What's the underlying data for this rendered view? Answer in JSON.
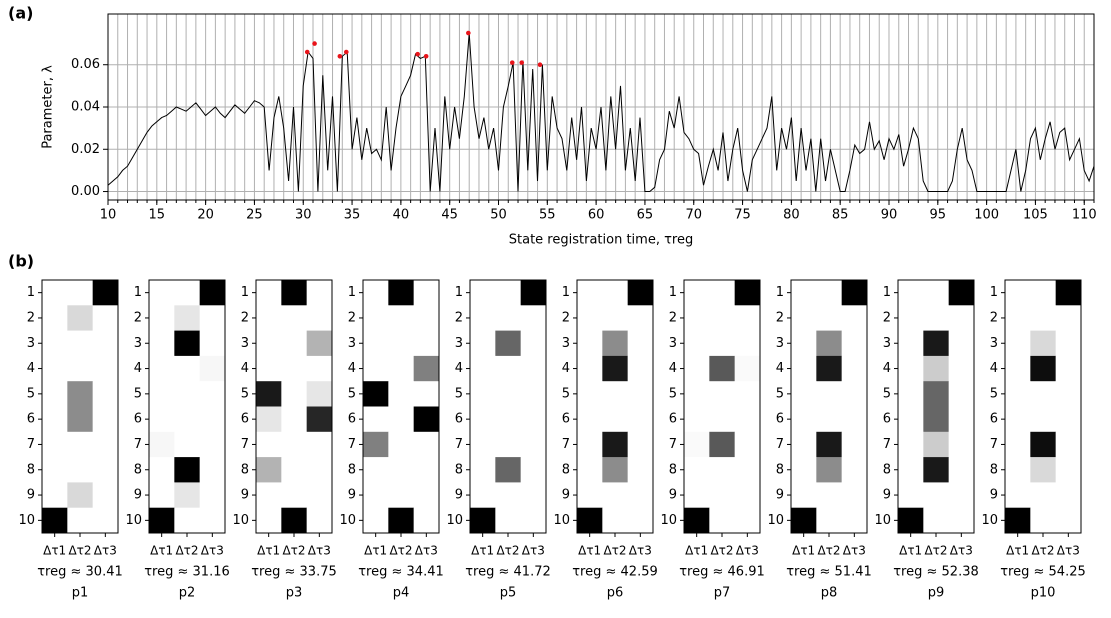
{
  "panel_labels": [
    "(a)",
    "(b)"
  ],
  "chart_data": [
    {
      "type": "line",
      "xlabel": "State registration time, τreg",
      "ylabel": "Parameter, λ",
      "color": "#000000",
      "xlim": [
        10,
        111
      ],
      "ylim": [
        -0.004,
        0.084
      ],
      "xticks": [
        10,
        15,
        20,
        25,
        30,
        35,
        40,
        45,
        50,
        55,
        60,
        65,
        70,
        75,
        80,
        85,
        90,
        95,
        100,
        105,
        110
      ],
      "xminorticks": [
        10,
        11,
        12,
        13,
        14,
        15,
        16,
        17,
        18,
        19,
        20,
        21,
        22,
        23,
        24,
        25,
        26,
        27,
        28,
        29,
        30,
        31,
        32,
        33,
        34,
        35,
        36,
        37,
        38,
        39,
        40,
        41,
        42,
        43,
        44,
        45,
        46,
        47,
        48,
        49,
        50,
        51,
        52,
        53,
        54,
        55,
        56,
        57,
        58,
        59,
        60,
        61,
        62,
        63,
        64,
        65,
        66,
        67,
        68,
        69,
        70,
        71,
        72,
        73,
        74,
        75,
        76,
        77,
        78,
        79,
        80,
        81,
        82,
        83,
        84,
        85,
        86,
        87,
        88,
        89,
        90,
        91,
        92,
        93,
        94,
        95,
        96,
        97,
        98,
        99,
        100,
        101,
        102,
        103,
        104,
        105,
        106,
        107,
        108,
        109,
        110,
        111
      ],
      "yticks": [
        {
          "value": 0,
          "label": "0.00"
        },
        {
          "value": 0.02,
          "label": "0.02"
        },
        {
          "value": 0.04,
          "label": "0.04"
        },
        {
          "value": 0.06,
          "label": "0.06"
        }
      ],
      "grid": true,
      "x": [
        10,
        10.5,
        11,
        11.5,
        12,
        12.5,
        13,
        13.5,
        14,
        14.5,
        15,
        15.5,
        16,
        16.5,
        17,
        17.5,
        18,
        18.5,
        19,
        19.5,
        20,
        20.5,
        21,
        21.5,
        22,
        22.5,
        23,
        23.5,
        24,
        24.5,
        25,
        25.5,
        26,
        26.5,
        27,
        27.5,
        28,
        28.5,
        29,
        29.5,
        30,
        30.5,
        31,
        31.5,
        32,
        32.5,
        33,
        33.5,
        34,
        34.5,
        35,
        35.5,
        36,
        36.5,
        37,
        37.5,
        38,
        38.5,
        39,
        39.5,
        40,
        40.5,
        41,
        41.5,
        42,
        42.5,
        43,
        43.5,
        44,
        44.5,
        45,
        45.5,
        46,
        46.5,
        47,
        47.5,
        48,
        48.5,
        49,
        49.5,
        50,
        50.5,
        51,
        51.5,
        52,
        52.5,
        53,
        53.5,
        54,
        54.5,
        55,
        55.5,
        56,
        56.5,
        57,
        57.5,
        58,
        58.5,
        59,
        59.5,
        60,
        60.5,
        61,
        61.5,
        62,
        62.5,
        63,
        63.5,
        64,
        64.5,
        65,
        65.5,
        66,
        66.5,
        67,
        67.5,
        68,
        68.5,
        69,
        69.5,
        70,
        70.5,
        71,
        71.5,
        72,
        72.5,
        73,
        73.5,
        74,
        74.5,
        75,
        75.5,
        76,
        76.5,
        77,
        77.5,
        78,
        78.5,
        79,
        79.5,
        80,
        80.5,
        81,
        81.5,
        82,
        82.5,
        83,
        83.5,
        84,
        84.5,
        85,
        85.5,
        86,
        86.5,
        87,
        87.5,
        88,
        88.5,
        89,
        89.5,
        90,
        90.5,
        91,
        91.5,
        92,
        92.5,
        93,
        93.5,
        94,
        94.5,
        95,
        95.5,
        96,
        96.5,
        97,
        97.5,
        98,
        98.5,
        99,
        99.5,
        100,
        100.5,
        101,
        101.5,
        102,
        102.5,
        103,
        103.5,
        104,
        104.5,
        105,
        105.5,
        106,
        106.5,
        107,
        107.5,
        108,
        108.5,
        109,
        109.5,
        110,
        110.5,
        111
      ],
      "values": [
        0.003,
        0.005,
        0.007,
        0.01,
        0.012,
        0.016,
        0.02,
        0.024,
        0.028,
        0.031,
        0.033,
        0.035,
        0.036,
        0.038,
        0.04,
        0.039,
        0.038,
        0.04,
        0.042,
        0.039,
        0.036,
        0.038,
        0.04,
        0.037,
        0.035,
        0.038,
        0.041,
        0.039,
        0.037,
        0.04,
        0.043,
        0.042,
        0.04,
        0.01,
        0.035,
        0.045,
        0.03,
        0.005,
        0.04,
        0.0,
        0.05,
        0.066,
        0.063,
        0.0,
        0.055,
        0.01,
        0.045,
        0.0,
        0.064,
        0.066,
        0.02,
        0.035,
        0.015,
        0.03,
        0.018,
        0.02,
        0.015,
        0.04,
        0.01,
        0.03,
        0.045,
        0.05,
        0.055,
        0.065,
        0.063,
        0.064,
        0.0,
        0.03,
        0.0,
        0.045,
        0.02,
        0.04,
        0.025,
        0.045,
        0.075,
        0.04,
        0.025,
        0.035,
        0.02,
        0.03,
        0.01,
        0.04,
        0.05,
        0.061,
        0.0,
        0.062,
        0.01,
        0.058,
        0.005,
        0.06,
        0.01,
        0.045,
        0.03,
        0.025,
        0.01,
        0.035,
        0.015,
        0.04,
        0.005,
        0.03,
        0.02,
        0.04,
        0.01,
        0.045,
        0.02,
        0.05,
        0.01,
        0.03,
        0.005,
        0.035,
        0.0,
        0.0,
        0.002,
        0.015,
        0.02,
        0.038,
        0.03,
        0.045,
        0.028,
        0.025,
        0.02,
        0.018,
        0.003,
        0.012,
        0.02,
        0.01,
        0.028,
        0.005,
        0.02,
        0.03,
        0.01,
        0.0,
        0.015,
        0.02,
        0.025,
        0.03,
        0.045,
        0.01,
        0.03,
        0.02,
        0.035,
        0.005,
        0.03,
        0.01,
        0.025,
        0.0,
        0.025,
        0.005,
        0.02,
        0.01,
        0.0,
        0.0,
        0.01,
        0.022,
        0.018,
        0.02,
        0.033,
        0.02,
        0.024,
        0.015,
        0.025,
        0.02,
        0.027,
        0.012,
        0.02,
        0.03,
        0.025,
        0.005,
        0.0,
        0.0,
        0.0,
        0.0,
        0.0,
        0.005,
        0.02,
        0.03,
        0.015,
        0.01,
        0.0,
        0.0,
        0.0,
        0.0,
        0.0,
        0.0,
        0.0,
        0.01,
        0.02,
        0.0,
        0.01,
        0.025,
        0.03,
        0.015,
        0.025,
        0.033,
        0.02,
        0.028,
        0.03,
        0.015,
        0.02,
        0.025,
        0.01,
        0.005,
        0.012
      ],
      "highlights": {
        "color": "#e8141a",
        "x": [
          30.41,
          31.16,
          33.75,
          34.41,
          41.72,
          42.59,
          46.91,
          51.41,
          52.38,
          54.25
        ],
        "values": [
          0.066,
          0.07,
          0.064,
          0.066,
          0.065,
          0.064,
          0.075,
          0.061,
          0.061,
          0.06
        ]
      }
    },
    {
      "type": "heatmap",
      "columns": [
        "Δτ1",
        "Δτ2",
        "Δτ3"
      ],
      "rows": [
        1,
        2,
        3,
        4,
        5,
        6,
        7,
        8,
        9,
        10
      ],
      "zlim": [
        0,
        1
      ],
      "caption": "τreg ≈ 30.41",
      "name": "p1",
      "values": [
        [
          0,
          0,
          1
        ],
        [
          0,
          0.15,
          0
        ],
        [
          0,
          0,
          0
        ],
        [
          0,
          0,
          0
        ],
        [
          0,
          0.45,
          0
        ],
        [
          0,
          0.45,
          0
        ],
        [
          0,
          0,
          0
        ],
        [
          0,
          0,
          0
        ],
        [
          0,
          0.15,
          0
        ],
        [
          1,
          0,
          0
        ]
      ]
    },
    {
      "type": "heatmap",
      "columns": [
        "Δτ1",
        "Δτ2",
        "Δτ3"
      ],
      "rows": [
        1,
        2,
        3,
        4,
        5,
        6,
        7,
        8,
        9,
        10
      ],
      "zlim": [
        0,
        1
      ],
      "caption": "τreg ≈ 31.16",
      "name": "p2",
      "values": [
        [
          0,
          0,
          1
        ],
        [
          0,
          0.1,
          0
        ],
        [
          0,
          1,
          0
        ],
        [
          0,
          0,
          0.03
        ],
        [
          0,
          0,
          0
        ],
        [
          0,
          0,
          0
        ],
        [
          0.03,
          0,
          0
        ],
        [
          0,
          1,
          0
        ],
        [
          0,
          0.1,
          0
        ],
        [
          1,
          0,
          0
        ]
      ]
    },
    {
      "type": "heatmap",
      "columns": [
        "Δτ1",
        "Δτ2",
        "Δτ3"
      ],
      "rows": [
        1,
        2,
        3,
        4,
        5,
        6,
        7,
        8,
        9,
        10
      ],
      "zlim": [
        0,
        1
      ],
      "caption": "τreg ≈ 33.75",
      "name": "p3",
      "values": [
        [
          0,
          1,
          0
        ],
        [
          0,
          0,
          0
        ],
        [
          0,
          0,
          0.3
        ],
        [
          0,
          0,
          0
        ],
        [
          0.9,
          0,
          0.1
        ],
        [
          0.1,
          0,
          0.85
        ],
        [
          0,
          0,
          0
        ],
        [
          0.3,
          0,
          0
        ],
        [
          0,
          0,
          0
        ],
        [
          0,
          1,
          0
        ]
      ]
    },
    {
      "type": "heatmap",
      "columns": [
        "Δτ1",
        "Δτ2",
        "Δτ3"
      ],
      "rows": [
        1,
        2,
        3,
        4,
        5,
        6,
        7,
        8,
        9,
        10
      ],
      "zlim": [
        0,
        1
      ],
      "caption": "τreg ≈ 34.41",
      "name": "p4",
      "values": [
        [
          0,
          1,
          0
        ],
        [
          0,
          0,
          0
        ],
        [
          0,
          0,
          0
        ],
        [
          0,
          0,
          0.5
        ],
        [
          1,
          0,
          0
        ],
        [
          0,
          0,
          1
        ],
        [
          0.5,
          0,
          0
        ],
        [
          0,
          0,
          0
        ],
        [
          0,
          0,
          0
        ],
        [
          0,
          1,
          0
        ]
      ]
    },
    {
      "type": "heatmap",
      "columns": [
        "Δτ1",
        "Δτ2",
        "Δτ3"
      ],
      "rows": [
        1,
        2,
        3,
        4,
        5,
        6,
        7,
        8,
        9,
        10
      ],
      "zlim": [
        0,
        1
      ],
      "caption": "τreg ≈ 41.72",
      "name": "p5",
      "values": [
        [
          0,
          0,
          1
        ],
        [
          0,
          0,
          0
        ],
        [
          0,
          0.6,
          0
        ],
        [
          0,
          0,
          0
        ],
        [
          0,
          0,
          0
        ],
        [
          0,
          0,
          0
        ],
        [
          0,
          0,
          0
        ],
        [
          0,
          0.6,
          0
        ],
        [
          0,
          0,
          0
        ],
        [
          1,
          0,
          0
        ]
      ]
    },
    {
      "type": "heatmap",
      "columns": [
        "Δτ1",
        "Δτ2",
        "Δτ3"
      ],
      "rows": [
        1,
        2,
        3,
        4,
        5,
        6,
        7,
        8,
        9,
        10
      ],
      "zlim": [
        0,
        1
      ],
      "caption": "τreg ≈ 42.59",
      "name": "p6",
      "values": [
        [
          0,
          0,
          1
        ],
        [
          0,
          0,
          0
        ],
        [
          0,
          0.45,
          0
        ],
        [
          0,
          0.9,
          0
        ],
        [
          0,
          0,
          0
        ],
        [
          0,
          0,
          0
        ],
        [
          0,
          0.9,
          0
        ],
        [
          0,
          0.45,
          0
        ],
        [
          0,
          0,
          0
        ],
        [
          1,
          0,
          0
        ]
      ]
    },
    {
      "type": "heatmap",
      "columns": [
        "Δτ1",
        "Δτ2",
        "Δτ3"
      ],
      "rows": [
        1,
        2,
        3,
        4,
        5,
        6,
        7,
        8,
        9,
        10
      ],
      "zlim": [
        0,
        1
      ],
      "caption": "τreg ≈ 46.91",
      "name": "p7",
      "values": [
        [
          0,
          0,
          1
        ],
        [
          0,
          0,
          0
        ],
        [
          0,
          0,
          0
        ],
        [
          0,
          0.65,
          0.02
        ],
        [
          0,
          0,
          0
        ],
        [
          0,
          0,
          0
        ],
        [
          0.02,
          0.65,
          0
        ],
        [
          0,
          0,
          0
        ],
        [
          0,
          0,
          0
        ],
        [
          1,
          0,
          0
        ]
      ]
    },
    {
      "type": "heatmap",
      "columns": [
        "Δτ1",
        "Δτ2",
        "Δτ3"
      ],
      "rows": [
        1,
        2,
        3,
        4,
        5,
        6,
        7,
        8,
        9,
        10
      ],
      "zlim": [
        0,
        1
      ],
      "caption": "τreg ≈ 51.41",
      "name": "p8",
      "values": [
        [
          0,
          0,
          1
        ],
        [
          0,
          0,
          0
        ],
        [
          0,
          0.45,
          0
        ],
        [
          0,
          0.9,
          0
        ],
        [
          0,
          0,
          0
        ],
        [
          0,
          0,
          0
        ],
        [
          0,
          0.9,
          0
        ],
        [
          0,
          0.45,
          0
        ],
        [
          0,
          0,
          0
        ],
        [
          1,
          0,
          0
        ]
      ]
    },
    {
      "type": "heatmap",
      "columns": [
        "Δτ1",
        "Δτ2",
        "Δτ3"
      ],
      "rows": [
        1,
        2,
        3,
        4,
        5,
        6,
        7,
        8,
        9,
        10
      ],
      "zlim": [
        0,
        1
      ],
      "caption": "τreg ≈ 52.38",
      "name": "p9",
      "values": [
        [
          0,
          0,
          1
        ],
        [
          0,
          0,
          0
        ],
        [
          0,
          0.9,
          0
        ],
        [
          0,
          0.2,
          0
        ],
        [
          0,
          0.6,
          0
        ],
        [
          0,
          0.6,
          0
        ],
        [
          0,
          0.2,
          0
        ],
        [
          0,
          0.9,
          0
        ],
        [
          0,
          0,
          0
        ],
        [
          1,
          0,
          0
        ]
      ]
    },
    {
      "type": "heatmap",
      "columns": [
        "Δτ1",
        "Δτ2",
        "Δτ3"
      ],
      "rows": [
        1,
        2,
        3,
        4,
        5,
        6,
        7,
        8,
        9,
        10
      ],
      "zlim": [
        0,
        1
      ],
      "caption": "τreg ≈ 54.25",
      "name": "p10",
      "values": [
        [
          0,
          0,
          1
        ],
        [
          0,
          0,
          0
        ],
        [
          0,
          0.15,
          0
        ],
        [
          0,
          0.95,
          0
        ],
        [
          0,
          0,
          0
        ],
        [
          0,
          0,
          0
        ],
        [
          0,
          0.95,
          0
        ],
        [
          0,
          0.15,
          0
        ],
        [
          0,
          0,
          0
        ],
        [
          1,
          0,
          0
        ]
      ]
    }
  ]
}
